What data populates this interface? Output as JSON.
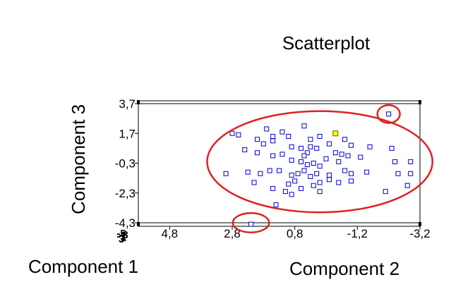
{
  "chart_data": {
    "type": "scatter",
    "title": "Scatterplot",
    "xlabel": "Component 2",
    "ylabel": "Component 3",
    "zlabel": "Component 1",
    "x_reversed": true,
    "xlim": [
      5.8,
      -3.2
    ],
    "ylim": [
      -4.3,
      3.7
    ],
    "x_ticks": [
      "4,8",
      "2,8",
      "0,8",
      "-1,2",
      "-3,2"
    ],
    "y_ticks": [
      "3,7",
      "1,7",
      "-0,3",
      "-2,3",
      "-4,3"
    ],
    "z_ticks": [
      "-5",
      "-3",
      "-1",
      "1",
      "3"
    ],
    "grid": false,
    "marker": "hollow-square",
    "marker_color": "#0000cc",
    "highlight_color": "#ffff00",
    "annotation_color": "#dd2222",
    "points": [
      {
        "x": 2.8,
        "y": 1.7
      },
      {
        "x": 2.6,
        "y": 1.6
      },
      {
        "x": 2.0,
        "y": 1.3
      },
      {
        "x": 1.8,
        "y": 1.0
      },
      {
        "x": 1.7,
        "y": 2.0
      },
      {
        "x": 1.5,
        "y": 1.2
      },
      {
        "x": 1.5,
        "y": 1.5
      },
      {
        "x": 1.2,
        "y": 1.8
      },
      {
        "x": 1.0,
        "y": 1.5
      },
      {
        "x": 0.5,
        "y": 2.2
      },
      {
        "x": 0.3,
        "y": 1.3
      },
      {
        "x": 0.0,
        "y": 1.5
      },
      {
        "x": -0.3,
        "y": 1.0
      },
      {
        "x": -0.8,
        "y": 1.3
      },
      {
        "x": -1.0,
        "y": 0.9
      },
      {
        "x": 0.9,
        "y": 0.8
      },
      {
        "x": 0.6,
        "y": 0.7
      },
      {
        "x": 0.4,
        "y": 0.4
      },
      {
        "x": 0.3,
        "y": 0.8
      },
      {
        "x": 0.1,
        "y": 0.7
      },
      {
        "x": -0.5,
        "y": 0.4
      },
      {
        "x": -0.7,
        "y": 0.3
      },
      {
        "x": 2.4,
        "y": 0.6
      },
      {
        "x": 2.0,
        "y": 0.4
      },
      {
        "x": 1.5,
        "y": 0.2
      },
      {
        "x": 1.2,
        "y": 0.3
      },
      {
        "x": 0.9,
        "y": -0.1
      },
      {
        "x": 0.6,
        "y": -0.2
      },
      {
        "x": 0.4,
        "y": -0.4
      },
      {
        "x": 0.2,
        "y": -0.3
      },
      {
        "x": 0.0,
        "y": -0.5
      },
      {
        "x": 0.5,
        "y": 0.2
      },
      {
        "x": -0.2,
        "y": 0.0
      },
      {
        "x": -0.6,
        "y": -0.2
      },
      {
        "x": -0.9,
        "y": 0.2
      },
      {
        "x": -1.3,
        "y": 0.1
      },
      {
        "x": 3.0,
        "y": -1.0
      },
      {
        "x": 2.3,
        "y": -0.9
      },
      {
        "x": 1.9,
        "y": -1.0
      },
      {
        "x": 1.6,
        "y": -0.8
      },
      {
        "x": 1.3,
        "y": -0.8
      },
      {
        "x": 0.9,
        "y": -1.1
      },
      {
        "x": 0.7,
        "y": -1.0
      },
      {
        "x": 0.5,
        "y": -0.8
      },
      {
        "x": 0.3,
        "y": -1.2
      },
      {
        "x": 0.1,
        "y": -1.0
      },
      {
        "x": -0.3,
        "y": -1.1
      },
      {
        "x": -0.8,
        "y": -0.8
      },
      {
        "x": -1.0,
        "y": -1.0
      },
      {
        "x": -1.5,
        "y": -0.9
      },
      {
        "x": 1.5,
        "y": -2.0
      },
      {
        "x": 1.0,
        "y": -1.7
      },
      {
        "x": 0.8,
        "y": -1.5
      },
      {
        "x": 0.6,
        "y": -2.0
      },
      {
        "x": 0.2,
        "y": -1.8
      },
      {
        "x": 0.0,
        "y": -1.6
      },
      {
        "x": -0.3,
        "y": -1.4
      },
      {
        "x": -0.6,
        "y": -1.6
      },
      {
        "x": -1.0,
        "y": -1.5
      },
      {
        "x": 2.1,
        "y": -1.6
      },
      {
        "x": 0.9,
        "y": -2.4
      },
      {
        "x": 1.1,
        "y": -2.2
      },
      {
        "x": 0.0,
        "y": -2.2
      },
      {
        "x": 1.4,
        "y": -3.1
      },
      {
        "x": -1.6,
        "y": 0.8
      },
      {
        "x": -2.3,
        "y": 0.7
      },
      {
        "x": -2.4,
        "y": -0.2
      },
      {
        "x": -2.9,
        "y": -0.2
      },
      {
        "x": -2.9,
        "y": -1.0
      },
      {
        "x": -2.5,
        "y": -1.0
      },
      {
        "x": -2.8,
        "y": -1.8
      },
      {
        "x": -2.1,
        "y": -2.2
      },
      {
        "x": -2.2,
        "y": 3.0
      },
      {
        "x": 2.2,
        "y": -4.4
      },
      {
        "x": -0.5,
        "y": 1.7,
        "highlight": true
      }
    ],
    "annotations": [
      {
        "type": "ellipse",
        "cx": 0.0,
        "cy": -0.2,
        "rx": 3.6,
        "ry": 3.4
      },
      {
        "type": "ellipse",
        "cx": -2.2,
        "cy": 3.0,
        "rx": 0.36,
        "ry": 0.6
      },
      {
        "type": "ellipse",
        "cx": 2.2,
        "cy": -4.3,
        "rx": 0.58,
        "ry": 0.65
      }
    ]
  }
}
